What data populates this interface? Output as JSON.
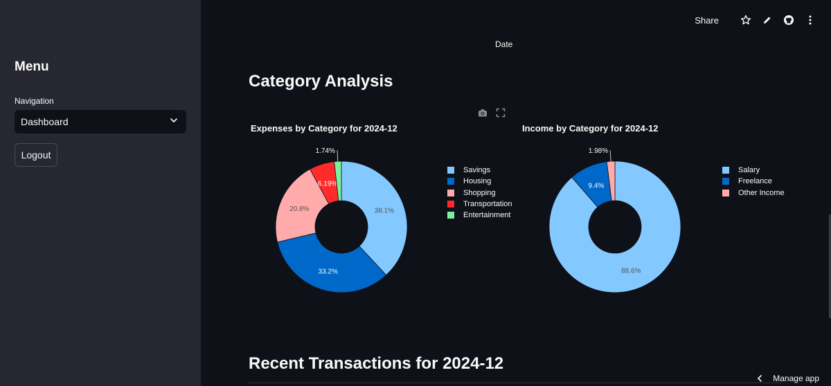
{
  "sidebar": {
    "menu_title": "Menu",
    "navigation_label": "Navigation",
    "navigation_value": "Dashboard",
    "logout_label": "Logout"
  },
  "toolbar": {
    "share_label": "Share",
    "icons": [
      "star-icon",
      "edit-icon",
      "github-icon",
      "more-icon"
    ]
  },
  "main": {
    "date_label": "Date",
    "section_title": "Category Analysis",
    "recent_title": "Recent Transactions for 2024-12"
  },
  "footer": {
    "manage_app_label": "Manage app"
  },
  "chart_data": [
    {
      "type": "pie",
      "title": "Expenses by Category for 2024-12",
      "labels": [
        "Savings",
        "Housing",
        "Shopping",
        "Transportation",
        "Entertainment"
      ],
      "values": [
        38.1,
        33.2,
        20.8,
        6.19,
        1.74
      ],
      "value_labels": [
        "38.1%",
        "33.2%",
        "20.8%",
        "6.19%",
        "1.74%"
      ],
      "colors": [
        "#83c9ff",
        "#0068c9",
        "#ffabab",
        "#ff2b2b",
        "#7defa1"
      ],
      "hole": 0.4,
      "legend_position": "right"
    },
    {
      "type": "pie",
      "title": "Income by Category for 2024-12",
      "labels": [
        "Salary",
        "Freelance",
        "Other Income"
      ],
      "values": [
        88.6,
        9.4,
        1.98
      ],
      "value_labels": [
        "88.6%",
        "9.4%",
        "1.98%"
      ],
      "colors": [
        "#83c9ff",
        "#0068c9",
        "#ffabab"
      ],
      "hole": 0.4,
      "legend_position": "right"
    }
  ]
}
